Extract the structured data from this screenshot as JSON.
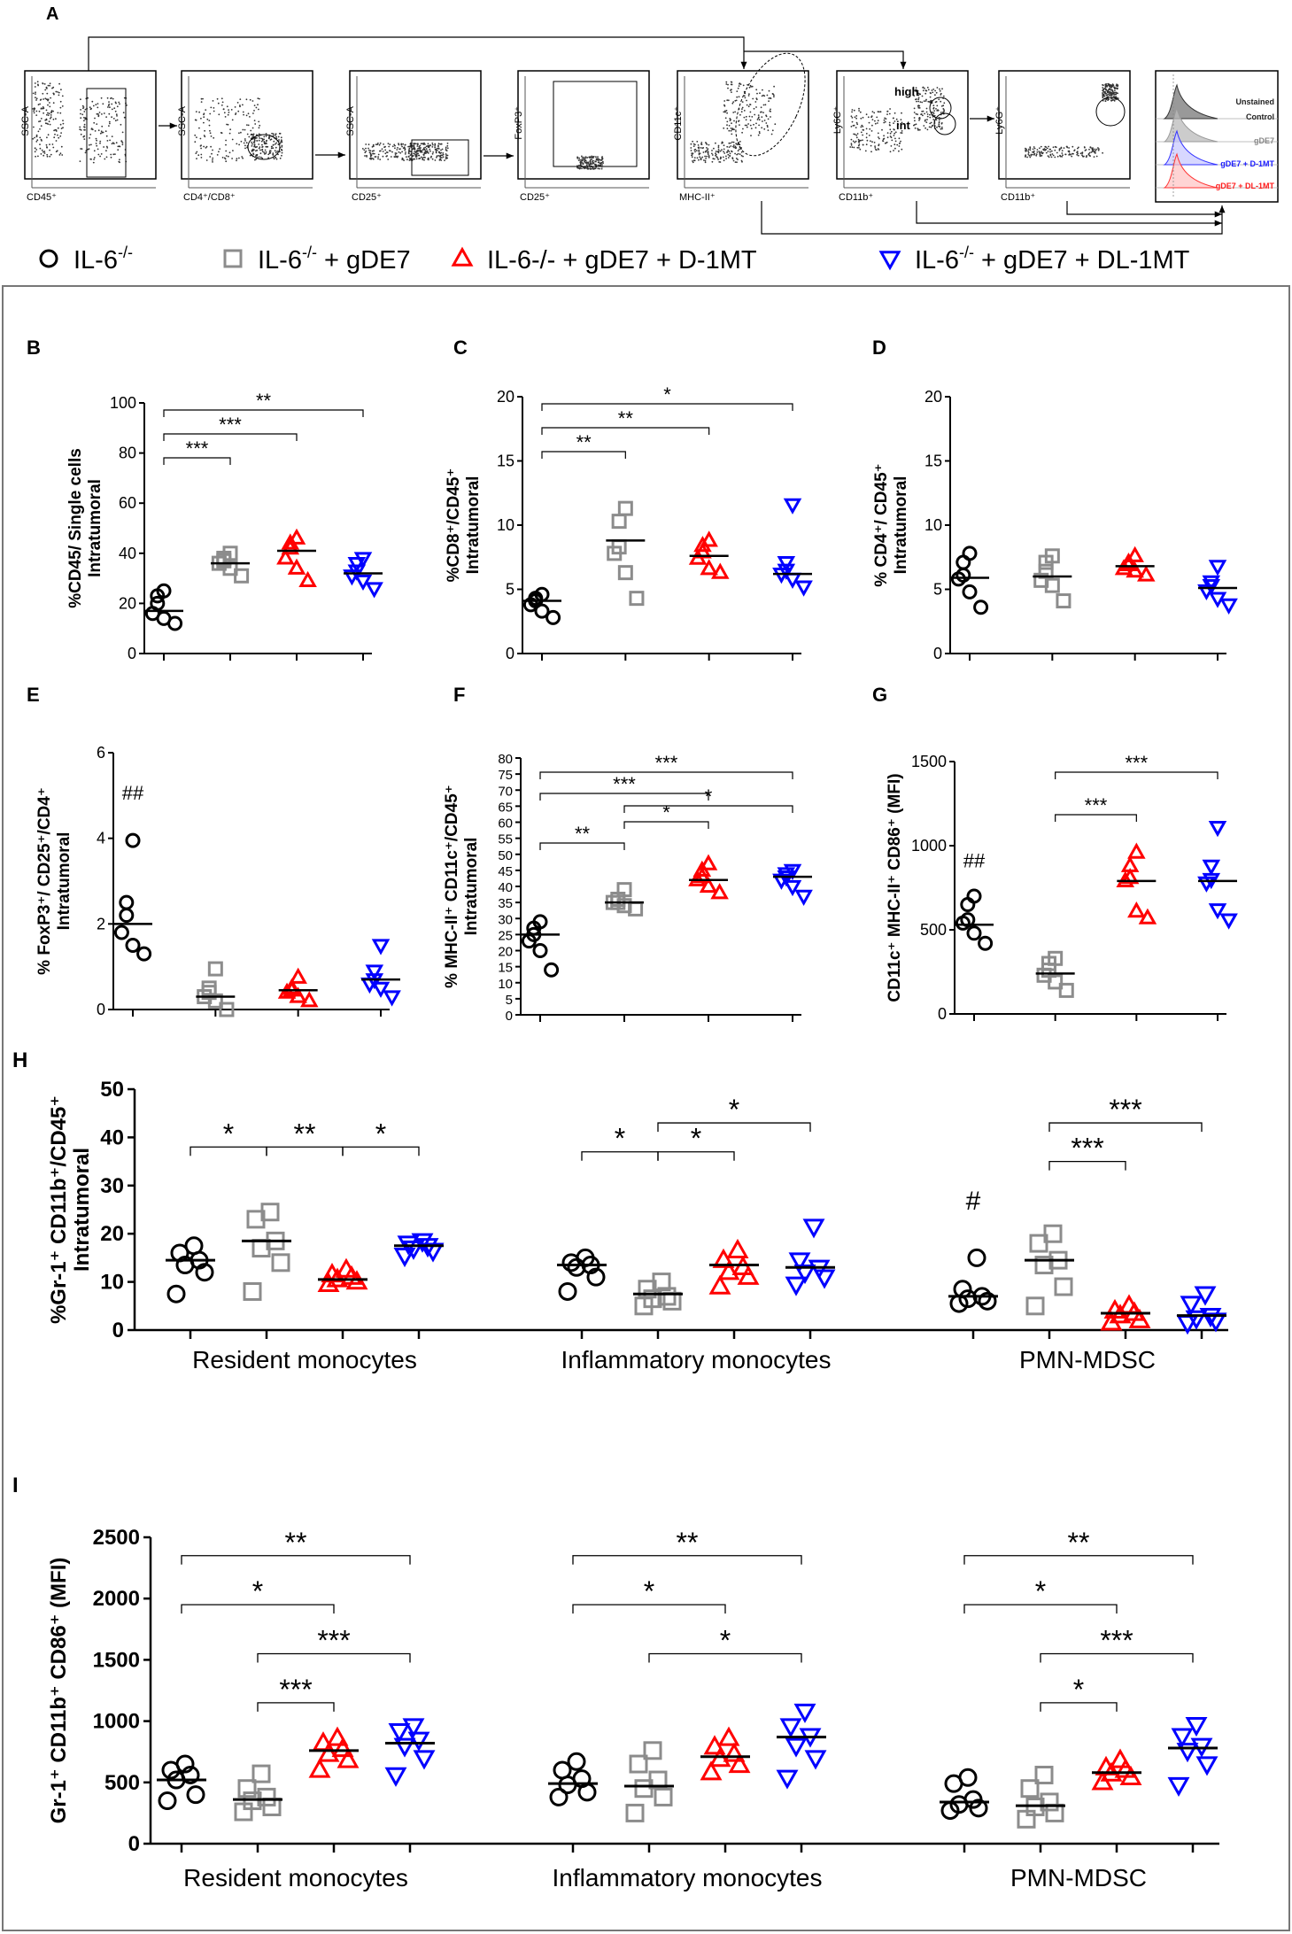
{
  "panel_a": {
    "label": "A",
    "flow_plots": [
      {
        "ylabel": "SSC-A",
        "xlabel": "CD45⁺"
      },
      {
        "ylabel": "SSC-A",
        "xlabel": "CD4⁺/CD8⁺"
      },
      {
        "ylabel": "SSC-A",
        "xlabel": "CD25⁺"
      },
      {
        "ylabel": "FoxP3⁺",
        "xlabel": "CD25⁺"
      },
      {
        "ylabel": "CD11c⁺",
        "xlabel": "MHC-II⁺"
      },
      {
        "ylabel": "Ly6C⁺",
        "xlabel": "CD11b⁺"
      },
      {
        "ylabel": "Ly6G⁺",
        "xlabel": "CD11b⁺"
      }
    ],
    "gate_labels": {
      "high": "high",
      "int": "int"
    },
    "histogram_legend": [
      {
        "text": "Unstained",
        "color": "#222222"
      },
      {
        "text": "Control",
        "color": "#222222"
      },
      {
        "text": "gDE7",
        "color": "#888888"
      },
      {
        "text": "gDE7 + D-1MT",
        "color": "#1a1aff"
      },
      {
        "text": "gDE7 + DL-1MT",
        "color": "#ff1a1a"
      }
    ]
  },
  "legend": [
    {
      "symbol": "circle",
      "label": "IL-6",
      "sup": "-/-",
      "tail": "",
      "color": "#000000"
    },
    {
      "symbol": "square",
      "label": "IL-6",
      "sup": "-/-",
      "tail": " + gDE7",
      "color": "#8c8c8c"
    },
    {
      "symbol": "triangle-up",
      "label": "IL-6-/- + gDE7 + D-1MT",
      "sup": "",
      "tail": "",
      "color": "#ff0000"
    },
    {
      "symbol": "triangle-down",
      "label": "IL-6",
      "sup": "-/-",
      "tail": " + gDE7 + DL-1MT",
      "color": "#0000ff"
    }
  ],
  "chart_data": [
    {
      "id": "B",
      "panel_label": "B",
      "type": "scatter",
      "ylabel": [
        "%CD45/ Single cells",
        "Intratumoral"
      ],
      "ylim": [
        0,
        100
      ],
      "yticks": [
        0,
        20,
        40,
        60,
        80,
        100
      ],
      "groups": [
        {
          "values": [
            12,
            14,
            16,
            20,
            23,
            25
          ],
          "mean": 17
        },
        {
          "values": [
            31,
            34,
            36,
            37,
            38,
            40
          ],
          "mean": 36
        },
        {
          "values": [
            29,
            34,
            38,
            42,
            44,
            46
          ],
          "mean": 41
        },
        {
          "values": [
            26,
            29,
            31,
            33,
            36,
            38
          ],
          "mean": 32
        }
      ],
      "sig": [
        {
          "from": 0,
          "to": 1,
          "label": "***"
        },
        {
          "from": 0,
          "to": 2,
          "label": "***"
        },
        {
          "from": 0,
          "to": 3,
          "label": "**"
        }
      ],
      "hash": null
    },
    {
      "id": "C",
      "panel_label": "C",
      "type": "scatter",
      "ylabel": [
        "%CD8⁺/CD45⁺",
        "Intratumoral"
      ],
      "ylim": [
        0,
        20
      ],
      "yticks": [
        0,
        5,
        10,
        15,
        20
      ],
      "groups": [
        {
          "values": [
            2.8,
            3.3,
            3.8,
            4.1,
            4.3,
            4.6
          ],
          "mean": 4.1
        },
        {
          "values": [
            4.3,
            6.3,
            7.8,
            8.3,
            10.3,
            11.3
          ],
          "mean": 8.8
        },
        {
          "values": [
            6.3,
            6.6,
            7.4,
            7.9,
            8.4,
            8.8
          ],
          "mean": 7.6
        },
        {
          "values": [
            5.2,
            5.8,
            6.2,
            6.5,
            7.1,
            11.6
          ],
          "mean": 6.2
        }
      ],
      "sig": [
        {
          "from": 0,
          "to": 1,
          "label": "**"
        },
        {
          "from": 0,
          "to": 2,
          "label": "**"
        },
        {
          "from": 0,
          "to": 3,
          "label": "*"
        }
      ],
      "hash": null
    },
    {
      "id": "D",
      "panel_label": "D",
      "type": "scatter",
      "ylabel": [
        "% CD4⁺/ CD45⁺",
        "Intratumoral"
      ],
      "ylim": [
        0,
        20
      ],
      "yticks": [
        0,
        5,
        10,
        15,
        20
      ],
      "groups": [
        {
          "values": [
            3.6,
            4.8,
            5.8,
            6.1,
            7.1,
            7.8
          ],
          "mean": 5.9
        },
        {
          "values": [
            4.1,
            5.3,
            5.7,
            6.4,
            7.1,
            7.6
          ],
          "mean": 6.0
        },
        {
          "values": [
            6.1,
            6.4,
            6.6,
            6.9,
            7.1,
            7.6
          ],
          "mean": 6.8
        },
        {
          "values": [
            3.8,
            4.3,
            4.9,
            5.3,
            5.6,
            6.8
          ],
          "mean": 5.1
        }
      ],
      "sig": [],
      "hash": null
    },
    {
      "id": "E",
      "panel_label": "E",
      "type": "scatter",
      "ylabel": [
        "% FoxP3⁺/ CD25⁺/CD4⁺",
        "Intratumoral"
      ],
      "ylim": [
        0,
        6
      ],
      "yticks": [
        0,
        2,
        4,
        6
      ],
      "groups": [
        {
          "values": [
            1.3,
            1.5,
            1.8,
            2.2,
            2.5,
            3.95
          ],
          "mean": 2.0
        },
        {
          "values": [
            0.0,
            0.2,
            0.3,
            0.4,
            0.5,
            0.95
          ],
          "mean": 0.3
        },
        {
          "values": [
            0.2,
            0.3,
            0.4,
            0.45,
            0.5,
            0.75
          ],
          "mean": 0.45
        },
        {
          "values": [
            0.3,
            0.5,
            0.6,
            0.7,
            0.9,
            1.5
          ],
          "mean": 0.7
        }
      ],
      "sig": [],
      "hash": {
        "group": 0,
        "label": "##",
        "value": 4.9
      }
    },
    {
      "id": "F",
      "panel_label": "F",
      "type": "scatter",
      "ylabel": [
        "% MHC-II⁺ CD11c⁺/CD45⁺",
        "Intratumoral"
      ],
      "ylim": [
        0,
        80
      ],
      "yticks": [
        0,
        5,
        10,
        15,
        20,
        25,
        30,
        35,
        40,
        45,
        50,
        55,
        60,
        65,
        70,
        75,
        80
      ],
      "groups": [
        {
          "values": [
            14,
            20,
            23,
            25,
            27,
            29
          ],
          "mean": 25
        },
        {
          "values": [
            33,
            34,
            35,
            35,
            36,
            39
          ],
          "mean": 35
        },
        {
          "values": [
            38,
            40,
            42,
            43,
            45,
            47
          ],
          "mean": 42
        },
        {
          "values": [
            37,
            40,
            42,
            43,
            44,
            45
          ],
          "mean": 43
        }
      ],
      "sig": [
        {
          "from": 0,
          "to": 1,
          "label": "**"
        },
        {
          "from": 1,
          "to": 2,
          "label": "*"
        },
        {
          "from": 1,
          "to": 3,
          "label": "*"
        },
        {
          "from": 0,
          "to": 2,
          "label": "***"
        },
        {
          "from": 0,
          "to": 3,
          "label": "***"
        }
      ],
      "hash": null
    },
    {
      "id": "G",
      "panel_label": "G",
      "type": "scatter",
      "ylabel": [
        "CD11c⁺ MHC-II⁺ CD86⁺ (MFI)"
      ],
      "ylim": [
        0,
        1500
      ],
      "yticks": [
        0,
        500,
        1000,
        1500
      ],
      "groups": [
        {
          "values": [
            420,
            480,
            540,
            560,
            650,
            700
          ],
          "mean": 530
        },
        {
          "values": [
            140,
            190,
            230,
            260,
            300,
            330
          ],
          "mean": 240
        },
        {
          "values": [
            570,
            610,
            790,
            810,
            880,
            960
          ],
          "mean": 790
        },
        {
          "values": [
            560,
            620,
            780,
            800,
            880,
            1110
          ],
          "mean": 790
        }
      ],
      "sig": [
        {
          "from": 1,
          "to": 2,
          "label": "***"
        },
        {
          "from": 1,
          "to": 3,
          "label": "***"
        }
      ],
      "hash": {
        "group": 0,
        "label": "##",
        "value": 870
      }
    },
    {
      "id": "H",
      "panel_label": "H",
      "type": "scatter",
      "ylabel": [
        "%Gr-1⁺ CD11b⁺/CD45⁺",
        "Intratumoral"
      ],
      "ylim": [
        0,
        50
      ],
      "yticks": [
        0,
        10,
        20,
        30,
        40,
        50
      ],
      "categories": [
        "Resident monocytes",
        "Inflammatory monocytes",
        "PMN-MDSC"
      ],
      "clusters": [
        {
          "groups": [
            {
              "values": [
                7.5,
                12,
                13.5,
                14.5,
                16,
                17.5
              ],
              "mean": 14.5
            },
            {
              "values": [
                8,
                14,
                17,
                18.5,
                23,
                24.5
              ],
              "mean": 18.5
            },
            {
              "values": [
                9.5,
                10,
                10.5,
                11,
                11.5,
                12.5
              ],
              "mean": 10.5
            },
            {
              "values": [
                15.5,
                16.5,
                17,
                17.5,
                18,
                18.5
              ],
              "mean": 17.5
            }
          ]
        },
        {
          "groups": [
            {
              "values": [
                8,
                11,
                13,
                13.5,
                14,
                15
              ],
              "mean": 13.5
            },
            {
              "values": [
                5,
                6,
                6.5,
                7,
                8.5,
                10
              ],
              "mean": 7.5
            },
            {
              "values": [
                9,
                11,
                12,
                13,
                14.5,
                16.5
              ],
              "mean": 13.5
            },
            {
              "values": [
                9.5,
                11,
                12,
                13,
                14.5,
                21.5
              ],
              "mean": 13
            }
          ]
        },
        {
          "groups": [
            {
              "values": [
                5.5,
                6,
                6.5,
                7,
                8.5,
                15
              ],
              "mean": 7
            },
            {
              "values": [
                5,
                9,
                13.5,
                14.5,
                18,
                20
              ],
              "mean": 14.5
            },
            {
              "values": [
                1.5,
                2,
                3,
                3.5,
                4,
                5
              ],
              "mean": 3.5
            },
            {
              "values": [
                1.5,
                2,
                2.5,
                3,
                5.5,
                7.5
              ],
              "mean": 3
            }
          ]
        }
      ],
      "sig": [
        {
          "cluster": 0,
          "from": 0,
          "to": 1,
          "label": "*",
          "level": 38
        },
        {
          "cluster": 0,
          "from": 1,
          "to": 2,
          "label": "**",
          "level": 38
        },
        {
          "cluster": 0,
          "from": 2,
          "to": 3,
          "label": "*",
          "level": 38
        },
        {
          "cluster": 1,
          "from": 0,
          "to": 1,
          "label": "*",
          "level": 37
        },
        {
          "cluster": 1,
          "from": 1,
          "to": 2,
          "label": "*",
          "level": 37
        },
        {
          "cluster": 1,
          "from": 1,
          "to": 3,
          "label": "*",
          "level": 43
        },
        {
          "cluster": 2,
          "from": 1,
          "to": 2,
          "label": "***",
          "level": 35
        },
        {
          "cluster": 2,
          "from": 1,
          "to": 3,
          "label": "***",
          "level": 43
        }
      ],
      "hash": {
        "cluster": 2,
        "group": 0,
        "label": "#",
        "value": 25
      }
    },
    {
      "id": "I",
      "panel_label": "I",
      "type": "scatter",
      "ylabel": [
        "Gr-1⁺ CD11b⁺ CD86⁺ (MFI)"
      ],
      "ylim": [
        0,
        2500
      ],
      "yticks": [
        0,
        500,
        1000,
        1500,
        2000,
        2500
      ],
      "categories": [
        "Resident monocytes",
        "Inflammatory monocytes",
        "PMN-MDSC"
      ],
      "clusters": [
        {
          "groups": [
            {
              "values": [
                350,
                400,
                520,
                560,
                600,
                650
              ],
              "mean": 520
            },
            {
              "values": [
                260,
                300,
                350,
                380,
                450,
                570
              ],
              "mean": 360
            },
            {
              "values": [
                600,
                680,
                730,
                770,
                820,
                860
              ],
              "mean": 760
            },
            {
              "values": [
                560,
                700,
                800,
                850,
                920,
                960
              ],
              "mean": 820
            }
          ]
        },
        {
          "groups": [
            {
              "values": [
                380,
                420,
                480,
                530,
                600,
                670
              ],
              "mean": 490
            },
            {
              "values": [
                250,
                380,
                450,
                520,
                650,
                760
              ],
              "mean": 470
            },
            {
              "values": [
                580,
                640,
                690,
                730,
                790,
                860
              ],
              "mean": 710
            },
            {
              "values": [
                540,
                700,
                800,
                880,
                960,
                1080
              ],
              "mean": 870
            }
          ]
        },
        {
          "groups": [
            {
              "values": [
                270,
                290,
                320,
                360,
                490,
                540
              ],
              "mean": 340
            },
            {
              "values": [
                200,
                250,
                300,
                340,
                450,
                560
              ],
              "mean": 310
            },
            {
              "values": [
                500,
                540,
                570,
                600,
                620,
                680
              ],
              "mean": 580
            },
            {
              "values": [
                480,
                650,
                760,
                800,
                880,
                970
              ],
              "mean": 780
            }
          ]
        }
      ],
      "sig": [
        {
          "cluster": 0,
          "from": 1,
          "to": 2,
          "label": "***",
          "level": 1150
        },
        {
          "cluster": 0,
          "from": 1,
          "to": 3,
          "label": "***",
          "level": 1550
        },
        {
          "cluster": 0,
          "from": 0,
          "to": 2,
          "label": "*",
          "level": 1950
        },
        {
          "cluster": 0,
          "from": 0,
          "to": 3,
          "label": "**",
          "level": 2350
        },
        {
          "cluster": 1,
          "from": 1,
          "to": 3,
          "label": "*",
          "level": 1550
        },
        {
          "cluster": 1,
          "from": 0,
          "to": 2,
          "label": "*",
          "level": 1950
        },
        {
          "cluster": 1,
          "from": 0,
          "to": 3,
          "label": "**",
          "level": 2350
        },
        {
          "cluster": 2,
          "from": 1,
          "to": 2,
          "label": "*",
          "level": 1150
        },
        {
          "cluster": 2,
          "from": 1,
          "to": 3,
          "label": "***",
          "level": 1550
        },
        {
          "cluster": 2,
          "from": 0,
          "to": 2,
          "label": "*",
          "level": 1950
        },
        {
          "cluster": 2,
          "from": 0,
          "to": 3,
          "label": "**",
          "level": 2350
        }
      ],
      "hash": null
    }
  ]
}
